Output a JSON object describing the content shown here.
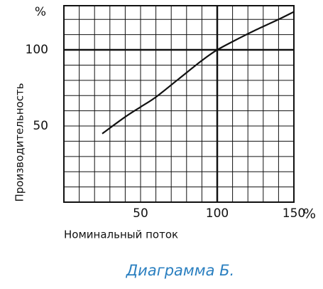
{
  "chart_data": {
    "type": "line",
    "y_label": "Производительность",
    "x_label": "Номинальный  поток",
    "y_unit_label": "%",
    "x_unit_label": "%",
    "caption": "Диаграмма Б.",
    "x": [
      25,
      40,
      50,
      60,
      75,
      90,
      100,
      115,
      125,
      140,
      150
    ],
    "values": [
      45,
      56,
      62.5,
      69,
      81,
      93,
      100,
      108,
      113,
      120,
      125
    ],
    "color": "#111111",
    "xlim": [
      0,
      150
    ],
    "ylim": [
      0,
      129
    ],
    "xticks": [
      50,
      100,
      150
    ],
    "yticks": [
      50,
      100
    ],
    "minor_xticks": [
      10,
      20,
      30,
      40,
      50,
      60,
      70,
      80,
      90,
      110,
      120,
      130,
      140
    ],
    "minor_yticks": [
      10,
      20,
      30,
      40,
      50,
      60,
      70,
      80,
      90,
      110,
      120
    ],
    "emphasis_x": 100,
    "emphasis_y": 100,
    "grid": true
  }
}
